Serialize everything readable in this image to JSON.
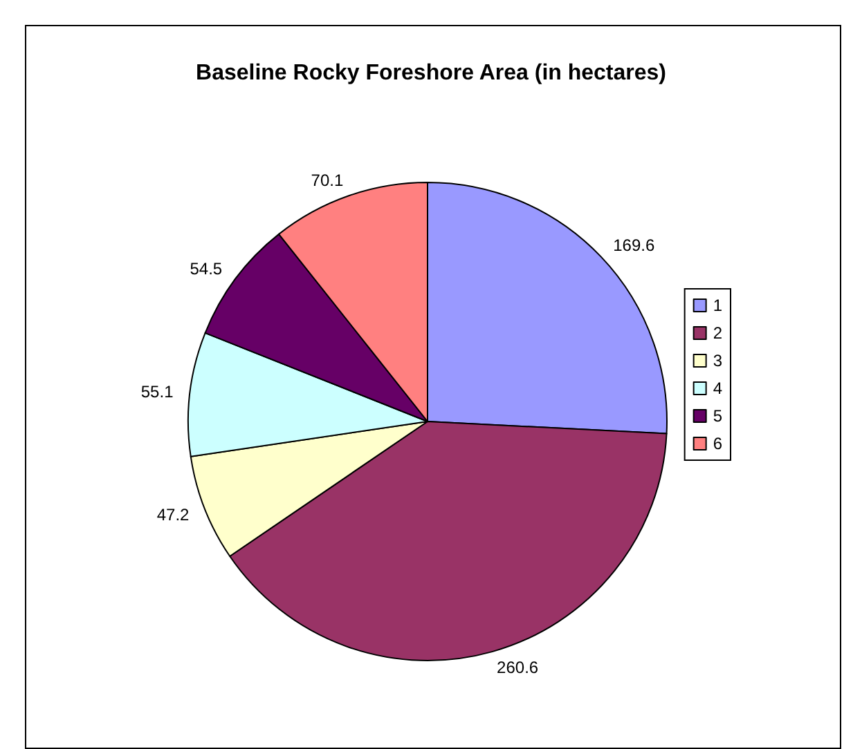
{
  "chart_data": {
    "type": "pie",
    "title": "Baseline Rocky Foreshore Area (in hectares)",
    "categories": [
      "1",
      "2",
      "3",
      "4",
      "5",
      "6"
    ],
    "values": [
      169.6,
      260.6,
      47.2,
      55.1,
      54.5,
      70.1
    ],
    "colors": [
      "#9999ff",
      "#993366",
      "#ffffcc",
      "#ccffff",
      "#660066",
      "#ff8080"
    ],
    "data_labels": true,
    "legend": "right"
  }
}
